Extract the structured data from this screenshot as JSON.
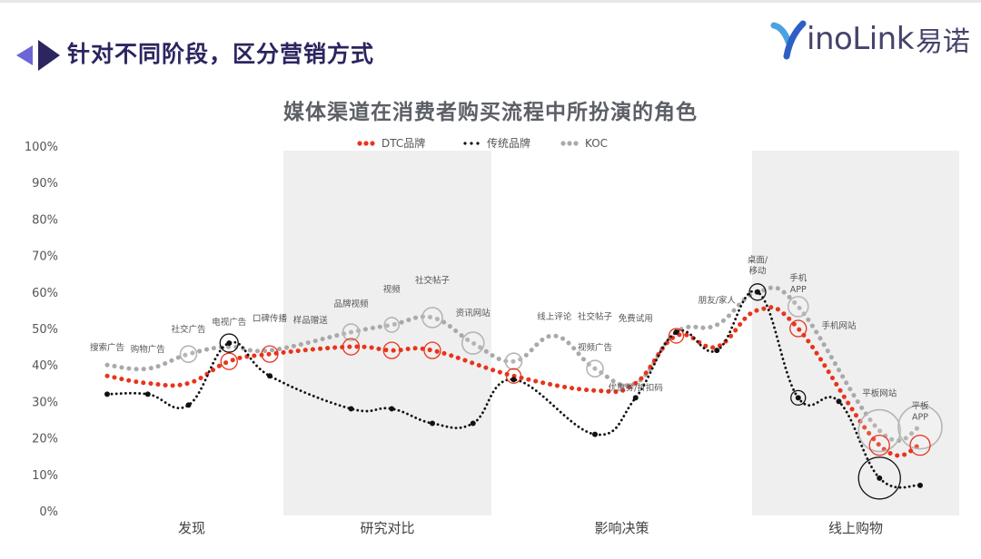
{
  "header": {
    "title": "针对不同阶段，区分营销方式",
    "logo_en": "inoLink",
    "logo_y": "Y",
    "logo_cn": "易诺"
  },
  "colors": {
    "dtc": "#e8341c",
    "traditional": "#111111",
    "koc": "#a9a9a9",
    "band": "#efefef",
    "title": "#2b2560",
    "arrow": "#6d64d6"
  },
  "chart_data": {
    "type": "line",
    "title": "媒体渠道在消费者购买流程中所扮演的角色",
    "xlabel": "",
    "ylabel": "",
    "ylim": [
      0,
      100
    ],
    "y_ticks": [
      "0%",
      "10%",
      "20%",
      "30%",
      "40%",
      "50%",
      "60%",
      "70%",
      "80%",
      "90%",
      "100%"
    ],
    "grid": false,
    "legend": "top-center",
    "stages": [
      {
        "label": "发现",
        "shaded": false
      },
      {
        "label": "研究对比",
        "shaded": true
      },
      {
        "label": "影响决策",
        "shaded": false
      },
      {
        "label": "线上购物",
        "shaded": true
      }
    ],
    "series": [
      {
        "name": "DTC品牌",
        "points": [
          {
            "x": 1,
            "y": 37
          },
          {
            "x": 2,
            "y": 35
          },
          {
            "x": 3,
            "y": 35
          },
          {
            "x": 4,
            "y": 41
          },
          {
            "x": 5,
            "y": 43
          },
          {
            "x": 7,
            "y": 45
          },
          {
            "x": 8,
            "y": 44
          },
          {
            "x": 9,
            "y": 44
          },
          {
            "x": 11,
            "y": 37
          },
          {
            "x": 13,
            "y": 33
          },
          {
            "x": 14,
            "y": 35
          },
          {
            "x": 15,
            "y": 48
          },
          {
            "x": 16,
            "y": 45
          },
          {
            "x": 17,
            "y": 55
          },
          {
            "x": 18,
            "y": 50
          },
          {
            "x": 20,
            "y": 18
          },
          {
            "x": 21,
            "y": 18
          }
        ]
      },
      {
        "name": "传统品牌",
        "points": [
          {
            "x": 1,
            "y": 32
          },
          {
            "x": 2,
            "y": 32
          },
          {
            "x": 3,
            "y": 29
          },
          {
            "x": 4,
            "y": 46
          },
          {
            "x": 5,
            "y": 37
          },
          {
            "x": 7,
            "y": 28
          },
          {
            "x": 8,
            "y": 28
          },
          {
            "x": 9,
            "y": 24
          },
          {
            "x": 10,
            "y": 24
          },
          {
            "x": 11,
            "y": 36
          },
          {
            "x": 13,
            "y": 21
          },
          {
            "x": 14,
            "y": 31
          },
          {
            "x": 15,
            "y": 49
          },
          {
            "x": 16,
            "y": 44
          },
          {
            "x": 17,
            "y": 60
          },
          {
            "x": 18,
            "y": 31
          },
          {
            "x": 19,
            "y": 30
          },
          {
            "x": 20,
            "y": 9
          },
          {
            "x": 21,
            "y": 7
          }
        ]
      },
      {
        "name": "KOC",
        "points": [
          {
            "x": 1,
            "y": 40
          },
          {
            "x": 2,
            "y": 39
          },
          {
            "x": 3,
            "y": 43
          },
          {
            "x": 4,
            "y": 45
          },
          {
            "x": 5,
            "y": 44
          },
          {
            "x": 7,
            "y": 49
          },
          {
            "x": 8,
            "y": 51
          },
          {
            "x": 9,
            "y": 53
          },
          {
            "x": 10,
            "y": 46
          },
          {
            "x": 11,
            "y": 41
          },
          {
            "x": 12,
            "y": 48
          },
          {
            "x": 13,
            "y": 39
          },
          {
            "x": 14,
            "y": 35
          },
          {
            "x": 15,
            "y": 49
          },
          {
            "x": 16,
            "y": 51
          },
          {
            "x": 17,
            "y": 60
          },
          {
            "x": 18,
            "y": 56
          },
          {
            "x": 20,
            "y": 22
          },
          {
            "x": 21,
            "y": 23
          }
        ]
      }
    ],
    "bubbles": [
      {
        "series": "KOC",
        "x": 3,
        "y": 43,
        "size": 9
      },
      {
        "series": "DTC品牌",
        "x": 4,
        "y": 41,
        "size": 9
      },
      {
        "series": "传统品牌",
        "x": 4,
        "y": 46,
        "size": 10
      },
      {
        "series": "DTC品牌",
        "x": 5,
        "y": 43,
        "size": 9
      },
      {
        "series": "KOC",
        "x": 7,
        "y": 49,
        "size": 9
      },
      {
        "series": "DTC品牌",
        "x": 7,
        "y": 45,
        "size": 9
      },
      {
        "series": "KOC",
        "x": 8,
        "y": 51,
        "size": 8
      },
      {
        "series": "DTC品牌",
        "x": 8,
        "y": 44,
        "size": 9
      },
      {
        "series": "KOC",
        "x": 9,
        "y": 53,
        "size": 11
      },
      {
        "series": "DTC品牌",
        "x": 9,
        "y": 44,
        "size": 9
      },
      {
        "series": "KOC",
        "x": 10,
        "y": 46,
        "size": 12
      },
      {
        "series": "KOC",
        "x": 11,
        "y": 41,
        "size": 9
      },
      {
        "series": "DTC品牌",
        "x": 11,
        "y": 37,
        "size": 8
      },
      {
        "series": "KOC",
        "x": 13,
        "y": 39,
        "size": 9
      },
      {
        "series": "DTC品牌",
        "x": 15,
        "y": 48,
        "size": 8
      },
      {
        "series": "传统品牌",
        "x": 17,
        "y": 60,
        "size": 9
      },
      {
        "series": "KOC",
        "x": 18,
        "y": 56,
        "size": 11
      },
      {
        "series": "DTC品牌",
        "x": 18,
        "y": 50,
        "size": 9
      },
      {
        "series": "传统品牌",
        "x": 18,
        "y": 31,
        "size": 8
      },
      {
        "series": "KOC",
        "x": 20,
        "y": 22,
        "size": 23
      },
      {
        "series": "KOC",
        "x": 21,
        "y": 23,
        "size": 24
      },
      {
        "series": "DTC品牌",
        "x": 20,
        "y": 18,
        "size": 11
      },
      {
        "series": "DTC品牌",
        "x": 21,
        "y": 18,
        "size": 11
      },
      {
        "series": "传统品牌",
        "x": 20,
        "y": 9,
        "size": 23
      }
    ],
    "annotations": [
      {
        "text": "搜索广告",
        "x": 1,
        "y": 44
      },
      {
        "text": "购物广告",
        "x": 2,
        "y": 43.5
      },
      {
        "text": "社交广告",
        "x": 3,
        "y": 49
      },
      {
        "text": "电视广告",
        "x": 4,
        "y": 51
      },
      {
        "text": "口碑传播",
        "x": 5,
        "y": 52
      },
      {
        "text": "样品赠送",
        "x": 6,
        "y": 51.5
      },
      {
        "text": "品牌视频",
        "x": 7,
        "y": 56
      },
      {
        "text": "视频",
        "x": 8,
        "y": 60
      },
      {
        "text": "社交帖子",
        "x": 9,
        "y": 62.5
      },
      {
        "text": "资讯网站",
        "x": 10,
        "y": 53.5
      },
      {
        "text": "线上评论",
        "x": 12,
        "y": 52.5
      },
      {
        "text": "社交帖子",
        "x": 13,
        "y": 52.5
      },
      {
        "text": "视频广告",
        "x": 13,
        "y": 44
      },
      {
        "text": "免费试用",
        "x": 14,
        "y": 52
      },
      {
        "text": "优惠券/折扣码",
        "x": 14,
        "y": 33
      },
      {
        "text": "朋友/家人",
        "x": 16,
        "y": 57
      },
      {
        "text": "桌面/",
        "x": 17,
        "y": 68
      },
      {
        "text": "移动",
        "x": 17,
        "y": 65
      },
      {
        "text": "手机",
        "x": 18,
        "y": 63
      },
      {
        "text": "APP",
        "x": 18,
        "y": 60
      },
      {
        "text": "手机网站",
        "x": 19,
        "y": 50
      },
      {
        "text": "平板网站",
        "x": 20,
        "y": 31.5
      },
      {
        "text": "平板",
        "x": 21,
        "y": 28
      },
      {
        "text": "APP",
        "x": 21,
        "y": 25
      }
    ]
  }
}
